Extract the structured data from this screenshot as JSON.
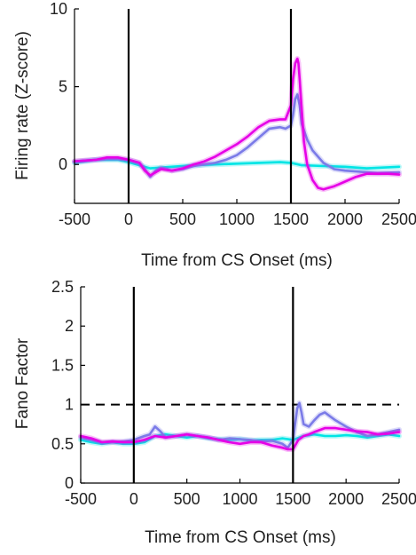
{
  "chart_data": [
    {
      "type": "line",
      "xlabel": "Time from CS Onset (ms)",
      "ylabel": "Firing rate (Z-score)",
      "xlim": [
        -500,
        2500
      ],
      "ylim": [
        -2.5,
        10
      ],
      "x_ticks": [
        -500,
        0,
        500,
        1000,
        1500,
        2000,
        2500
      ],
      "x_tick_labels": [
        "-500",
        "0",
        "500",
        "1000",
        "1500",
        "2000",
        "2500"
      ],
      "y_ticks": [
        0,
        5,
        10
      ],
      "y_tick_labels": [
        "0",
        "5",
        "10"
      ],
      "vlines": [
        0,
        1500
      ],
      "grid": false,
      "series": [
        {
          "color": "#00e5e5",
          "x": [
            -500,
            -300,
            -100,
            0,
            200,
            400,
            600,
            800,
            1000,
            1200,
            1400,
            1500,
            1600,
            1800,
            2000,
            2200,
            2500
          ],
          "values": [
            0.1,
            0.3,
            0.3,
            0.15,
            -0.25,
            -0.15,
            -0.05,
            0.0,
            0.05,
            0.1,
            0.15,
            0.1,
            -0.05,
            -0.1,
            -0.15,
            -0.25,
            -0.15
          ]
        },
        {
          "color": "#7b7be8",
          "x": [
            -500,
            -400,
            -300,
            -200,
            -100,
            0,
            100,
            150,
            200,
            250,
            300,
            400,
            500,
            600,
            700,
            800,
            900,
            1000,
            1100,
            1200,
            1300,
            1400,
            1450,
            1500,
            1520,
            1540,
            1560,
            1580,
            1600,
            1650,
            1700,
            1800,
            1900,
            2000,
            2200,
            2300,
            2500
          ],
          "values": [
            0.2,
            0.25,
            0.3,
            0.35,
            0.35,
            0.3,
            0.1,
            -0.3,
            -0.8,
            -0.4,
            -0.2,
            -0.4,
            -0.3,
            -0.1,
            0.0,
            0.1,
            0.3,
            0.6,
            1.1,
            1.7,
            2.3,
            2.4,
            2.3,
            2.5,
            3.2,
            4.2,
            4.5,
            3.8,
            2.6,
            1.6,
            0.9,
            0.1,
            -0.3,
            -0.4,
            -0.5,
            -0.55,
            -0.5
          ]
        },
        {
          "color": "#e600e6",
          "x": [
            -500,
            -400,
            -300,
            -200,
            -100,
            0,
            100,
            150,
            200,
            250,
            300,
            400,
            500,
            600,
            700,
            800,
            900,
            1000,
            1100,
            1200,
            1300,
            1400,
            1450,
            1500,
            1520,
            1540,
            1560,
            1570,
            1580,
            1600,
            1620,
            1650,
            1700,
            1750,
            1800,
            1900,
            2000,
            2100,
            2200,
            2300,
            2400,
            2500
          ],
          "values": [
            0.2,
            0.25,
            0.3,
            0.45,
            0.45,
            0.3,
            0.1,
            -0.4,
            -0.7,
            -0.5,
            -0.3,
            -0.4,
            -0.25,
            0.0,
            0.2,
            0.5,
            0.9,
            1.3,
            1.8,
            2.4,
            2.8,
            2.9,
            2.9,
            3.8,
            5.5,
            6.5,
            6.8,
            6.5,
            5.5,
            3.5,
            1.5,
            0.0,
            -1.0,
            -1.5,
            -1.6,
            -1.4,
            -1.1,
            -0.8,
            -0.6,
            -0.6,
            -0.6,
            -0.65
          ]
        }
      ]
    },
    {
      "type": "line",
      "xlabel": "Time from CS Onset (ms)",
      "ylabel": "Fano Factor",
      "xlim": [
        -500,
        2500
      ],
      "ylim": [
        0,
        2.5
      ],
      "x_ticks": [
        -500,
        0,
        500,
        1000,
        1500,
        2000,
        2500
      ],
      "x_tick_labels": [
        "-500",
        "0",
        "500",
        "1000",
        "1500",
        "2000",
        "2500"
      ],
      "y_ticks": [
        0,
        0.5,
        1,
        1.5,
        2,
        2.5
      ],
      "y_tick_labels": [
        "0",
        "0.5",
        "1",
        "1.5",
        "2",
        "2.5"
      ],
      "vlines": [
        0,
        1500
      ],
      "hline": {
        "value": 1,
        "style": "dashed"
      },
      "grid": false,
      "series": [
        {
          "color": "#00e5e5",
          "x": [
            -500,
            -400,
            -300,
            -200,
            -100,
            0,
            100,
            200,
            300,
            400,
            500,
            600,
            700,
            800,
            900,
            1000,
            1100,
            1200,
            1300,
            1400,
            1500,
            1600,
            1700,
            1800,
            1900,
            2000,
            2100,
            2200,
            2300,
            2400,
            2500
          ],
          "values": [
            0.55,
            0.52,
            0.5,
            0.52,
            0.5,
            0.5,
            0.52,
            0.6,
            0.62,
            0.6,
            0.58,
            0.6,
            0.57,
            0.56,
            0.55,
            0.56,
            0.54,
            0.55,
            0.55,
            0.57,
            0.55,
            0.6,
            0.62,
            0.6,
            0.6,
            0.61,
            0.6,
            0.58,
            0.6,
            0.62,
            0.6
          ]
        },
        {
          "color": "#7b7be8",
          "x": [
            -500,
            -400,
            -300,
            -200,
            -100,
            0,
            100,
            150,
            200,
            250,
            300,
            400,
            500,
            600,
            700,
            800,
            900,
            1000,
            1100,
            1200,
            1300,
            1400,
            1450,
            1500,
            1520,
            1540,
            1560,
            1580,
            1600,
            1650,
            1700,
            1750,
            1800,
            1850,
            1900,
            2000,
            2100,
            2200,
            2300,
            2400,
            2500
          ],
          "values": [
            0.58,
            0.55,
            0.52,
            0.52,
            0.53,
            0.55,
            0.6,
            0.62,
            0.72,
            0.66,
            0.58,
            0.6,
            0.62,
            0.6,
            0.58,
            0.55,
            0.57,
            0.56,
            0.55,
            0.53,
            0.54,
            0.5,
            0.45,
            0.55,
            0.75,
            0.95,
            1.02,
            0.9,
            0.75,
            0.72,
            0.8,
            0.87,
            0.9,
            0.85,
            0.8,
            0.72,
            0.65,
            0.6,
            0.62,
            0.65,
            0.68
          ]
        },
        {
          "color": "#e600e6",
          "x": [
            -500,
            -400,
            -300,
            -200,
            -100,
            0,
            100,
            200,
            300,
            400,
            500,
            600,
            700,
            800,
            900,
            1000,
            1100,
            1200,
            1300,
            1400,
            1450,
            1500,
            1550,
            1600,
            1650,
            1700,
            1800,
            1900,
            2000,
            2100,
            2200,
            2300,
            2400,
            2500
          ],
          "values": [
            0.6,
            0.57,
            0.52,
            0.53,
            0.52,
            0.52,
            0.55,
            0.6,
            0.58,
            0.6,
            0.62,
            0.6,
            0.58,
            0.55,
            0.52,
            0.5,
            0.52,
            0.52,
            0.48,
            0.45,
            0.43,
            0.43,
            0.55,
            0.6,
            0.62,
            0.65,
            0.7,
            0.7,
            0.68,
            0.66,
            0.65,
            0.62,
            0.63,
            0.65
          ]
        }
      ]
    }
  ]
}
